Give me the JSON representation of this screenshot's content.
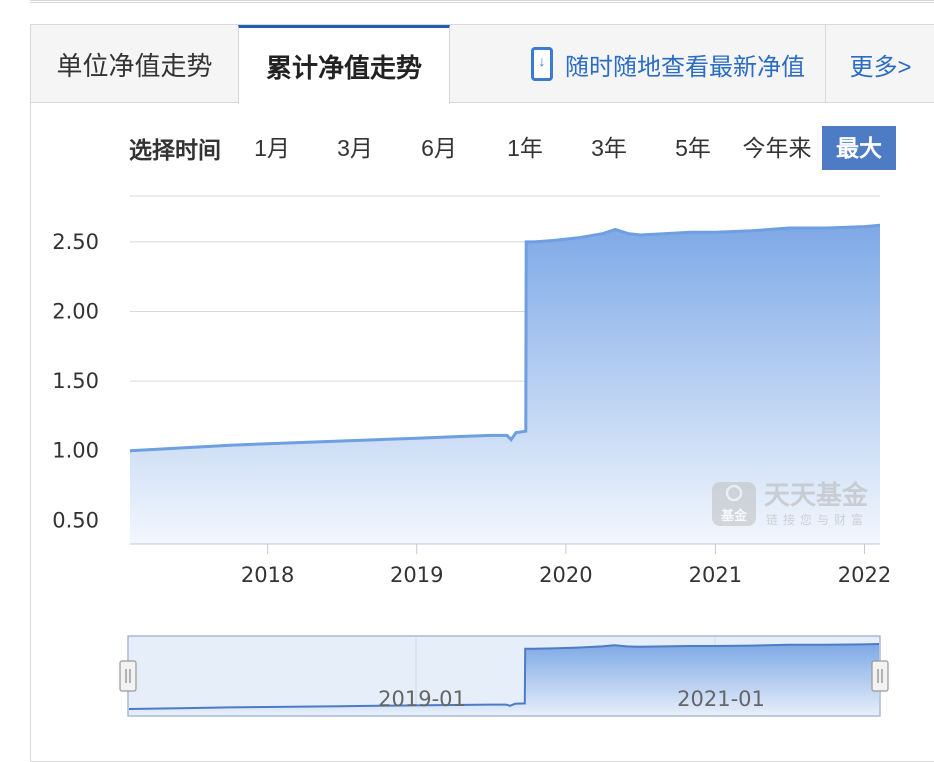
{
  "tabs": {
    "unit_nav": "单位净值走势",
    "accumulated_nav": "累计净值走势",
    "mobile_link": "随时随地查看最新净值",
    "more": "更多>"
  },
  "range_selector": {
    "label": "选择时间",
    "options": [
      "1月",
      "3月",
      "6月",
      "1年",
      "3年",
      "5年",
      "今年来",
      "最大"
    ],
    "selected": "最大"
  },
  "watermark": {
    "badge": "基金",
    "name": "天天基金",
    "slogan": "链接您与财富"
  },
  "colors": {
    "accent": "#4d7bc4",
    "line": "#6e9fe0",
    "area_top": "#7ea9e6",
    "area_bottom": "#f3f7fd"
  },
  "navigator": {
    "labels": [
      "2019-01",
      "2021-01"
    ]
  },
  "chart_data": {
    "type": "area",
    "title": "",
    "xlabel": "",
    "ylabel": "",
    "ylim": [
      0.33,
      2.83
    ],
    "xlim": [
      "2017-01-29",
      "2022-02-08"
    ],
    "yticks": [
      0.5,
      1.0,
      1.5,
      2.0,
      2.5
    ],
    "ytick_labels": [
      "0.50",
      "1.00",
      "1.50",
      "2.00",
      "2.50"
    ],
    "xticks": [
      "2018-01-01",
      "2019-01-01",
      "2020-01-01",
      "2021-01-01",
      "2022-01-01"
    ],
    "xtick_labels": [
      "2018",
      "2019",
      "2020",
      "2021",
      "2022"
    ],
    "grid": true,
    "series": [
      {
        "x": [
          "2017-01-29",
          "2017-06-01",
          "2017-10-01",
          "2018-01-01",
          "2018-04-01",
          "2018-07-01",
          "2018-10-01",
          "2019-01-01",
          "2019-04-01",
          "2019-07-01",
          "2019-08-10",
          "2019-08-20",
          "2019-09-01",
          "2019-09-25",
          "2019-09-26",
          "2019-10-15",
          "2019-12-01",
          "2020-02-01",
          "2020-04-01",
          "2020-05-01",
          "2020-06-01",
          "2020-07-01",
          "2020-09-01",
          "2020-11-01",
          "2021-01-01",
          "2021-04-01",
          "2021-07-01",
          "2021-10-01",
          "2022-01-01",
          "2022-02-08"
        ],
        "y": [
          1.0,
          1.02,
          1.04,
          1.05,
          1.06,
          1.07,
          1.08,
          1.09,
          1.1,
          1.11,
          1.11,
          1.08,
          1.13,
          1.14,
          2.5,
          2.5,
          2.51,
          2.53,
          2.56,
          2.59,
          2.56,
          2.55,
          2.56,
          2.57,
          2.57,
          2.58,
          2.6,
          2.6,
          2.61,
          2.62
        ]
      }
    ]
  }
}
